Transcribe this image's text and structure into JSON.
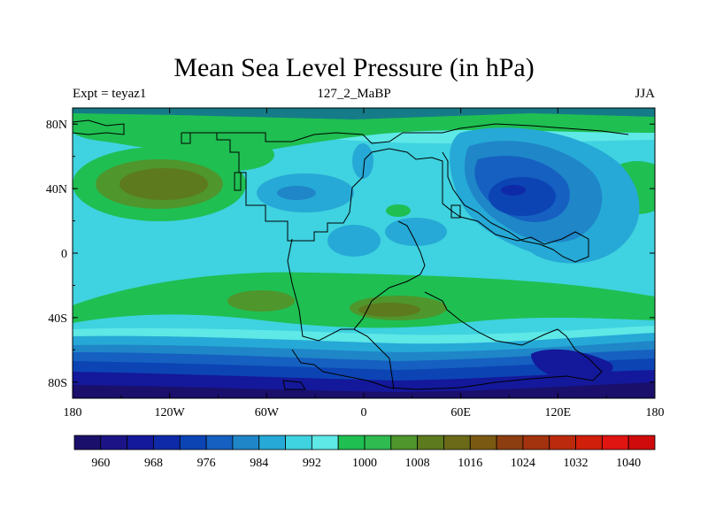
{
  "title": "Mean Sea Level Pressure (in hPa)",
  "subtitle": {
    "left": "Expt = teyaz1",
    "center": "127_2_MaBP",
    "right": "JJA"
  },
  "lon_ticks": [
    "180",
    "120W",
    "60W",
    "0",
    "60E",
    "120E",
    "180"
  ],
  "lat_ticks": [
    "80N",
    "40N",
    "0",
    "40S",
    "80S"
  ],
  "colorbar": {
    "labels": [
      "960",
      "968",
      "976",
      "984",
      "992",
      "1000",
      "1008",
      "1016",
      "1024",
      "1032",
      "1040"
    ],
    "colors": [
      "#1a0f6b",
      "#1c1486",
      "#14189a",
      "#0f2aa8",
      "#0c44b4",
      "#1560c0",
      "#1f86c8",
      "#26a9d6",
      "#3fd2e0",
      "#5ee8e6",
      "#1fbf52",
      "#2fbb50",
      "#4f962c",
      "#5d7a1e",
      "#6a6a18",
      "#7a5a12",
      "#8c3e10",
      "#a3320e",
      "#bb2a0c",
      "#d01f0a",
      "#e01410",
      "#cf0b0b"
    ]
  },
  "chart_data": {
    "type": "heatmap",
    "title": "Mean Sea Level Pressure (in hPa)",
    "variable": "Mean Sea Level Pressure",
    "units": "hPa",
    "season": "JJA",
    "experiment": "teyaz1",
    "period": "127_2_MaBP",
    "x_range": [
      -180,
      180
    ],
    "y_range": [
      -90,
      90
    ],
    "levels": [
      960,
      964,
      968,
      972,
      976,
      980,
      984,
      988,
      992,
      996,
      1000,
      1004,
      1008,
      1012,
      1016,
      1020,
      1024,
      1028,
      1032,
      1036,
      1040
    ],
    "xlabel": "",
    "ylabel": ""
  }
}
